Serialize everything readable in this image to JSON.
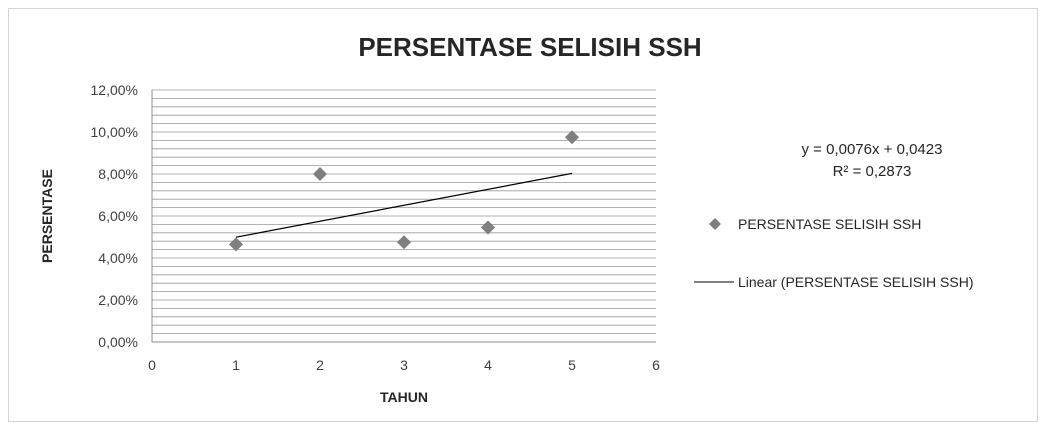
{
  "chart_data": {
    "type": "scatter",
    "title": "PERSENTASE SELISIH SSH",
    "xlabel": "TAHUN",
    "ylabel": "PERSENTASE",
    "xlim": [
      0,
      6
    ],
    "ylim": [
      0,
      0.12
    ],
    "x_ticks": [
      "0",
      "1",
      "2",
      "3",
      "4",
      "5",
      "6"
    ],
    "y_ticks": [
      "0,00%",
      "2,00%",
      "4,00%",
      "6,00%",
      "8,00%",
      "10,00%",
      "12,00%"
    ],
    "grid": true,
    "legend_position": "right",
    "series": [
      {
        "name": "PERSENTASE SELISIH SSH",
        "kind": "scatter",
        "marker": "diamond",
        "color": "#7f7f7f",
        "x": [
          1,
          2,
          3,
          4,
          5
        ],
        "y": [
          0.0465,
          0.08,
          0.0475,
          0.0545,
          0.0975
        ]
      },
      {
        "name": "Linear (PERSENTASE SELISIH SSH)",
        "kind": "trendline",
        "color": "#000000",
        "x": [
          1,
          5
        ],
        "y": [
          0.0499,
          0.0803
        ]
      }
    ],
    "trendline_equation": "y = 0,0076x + 0,0423",
    "r_squared": "R² = 0,2873"
  }
}
